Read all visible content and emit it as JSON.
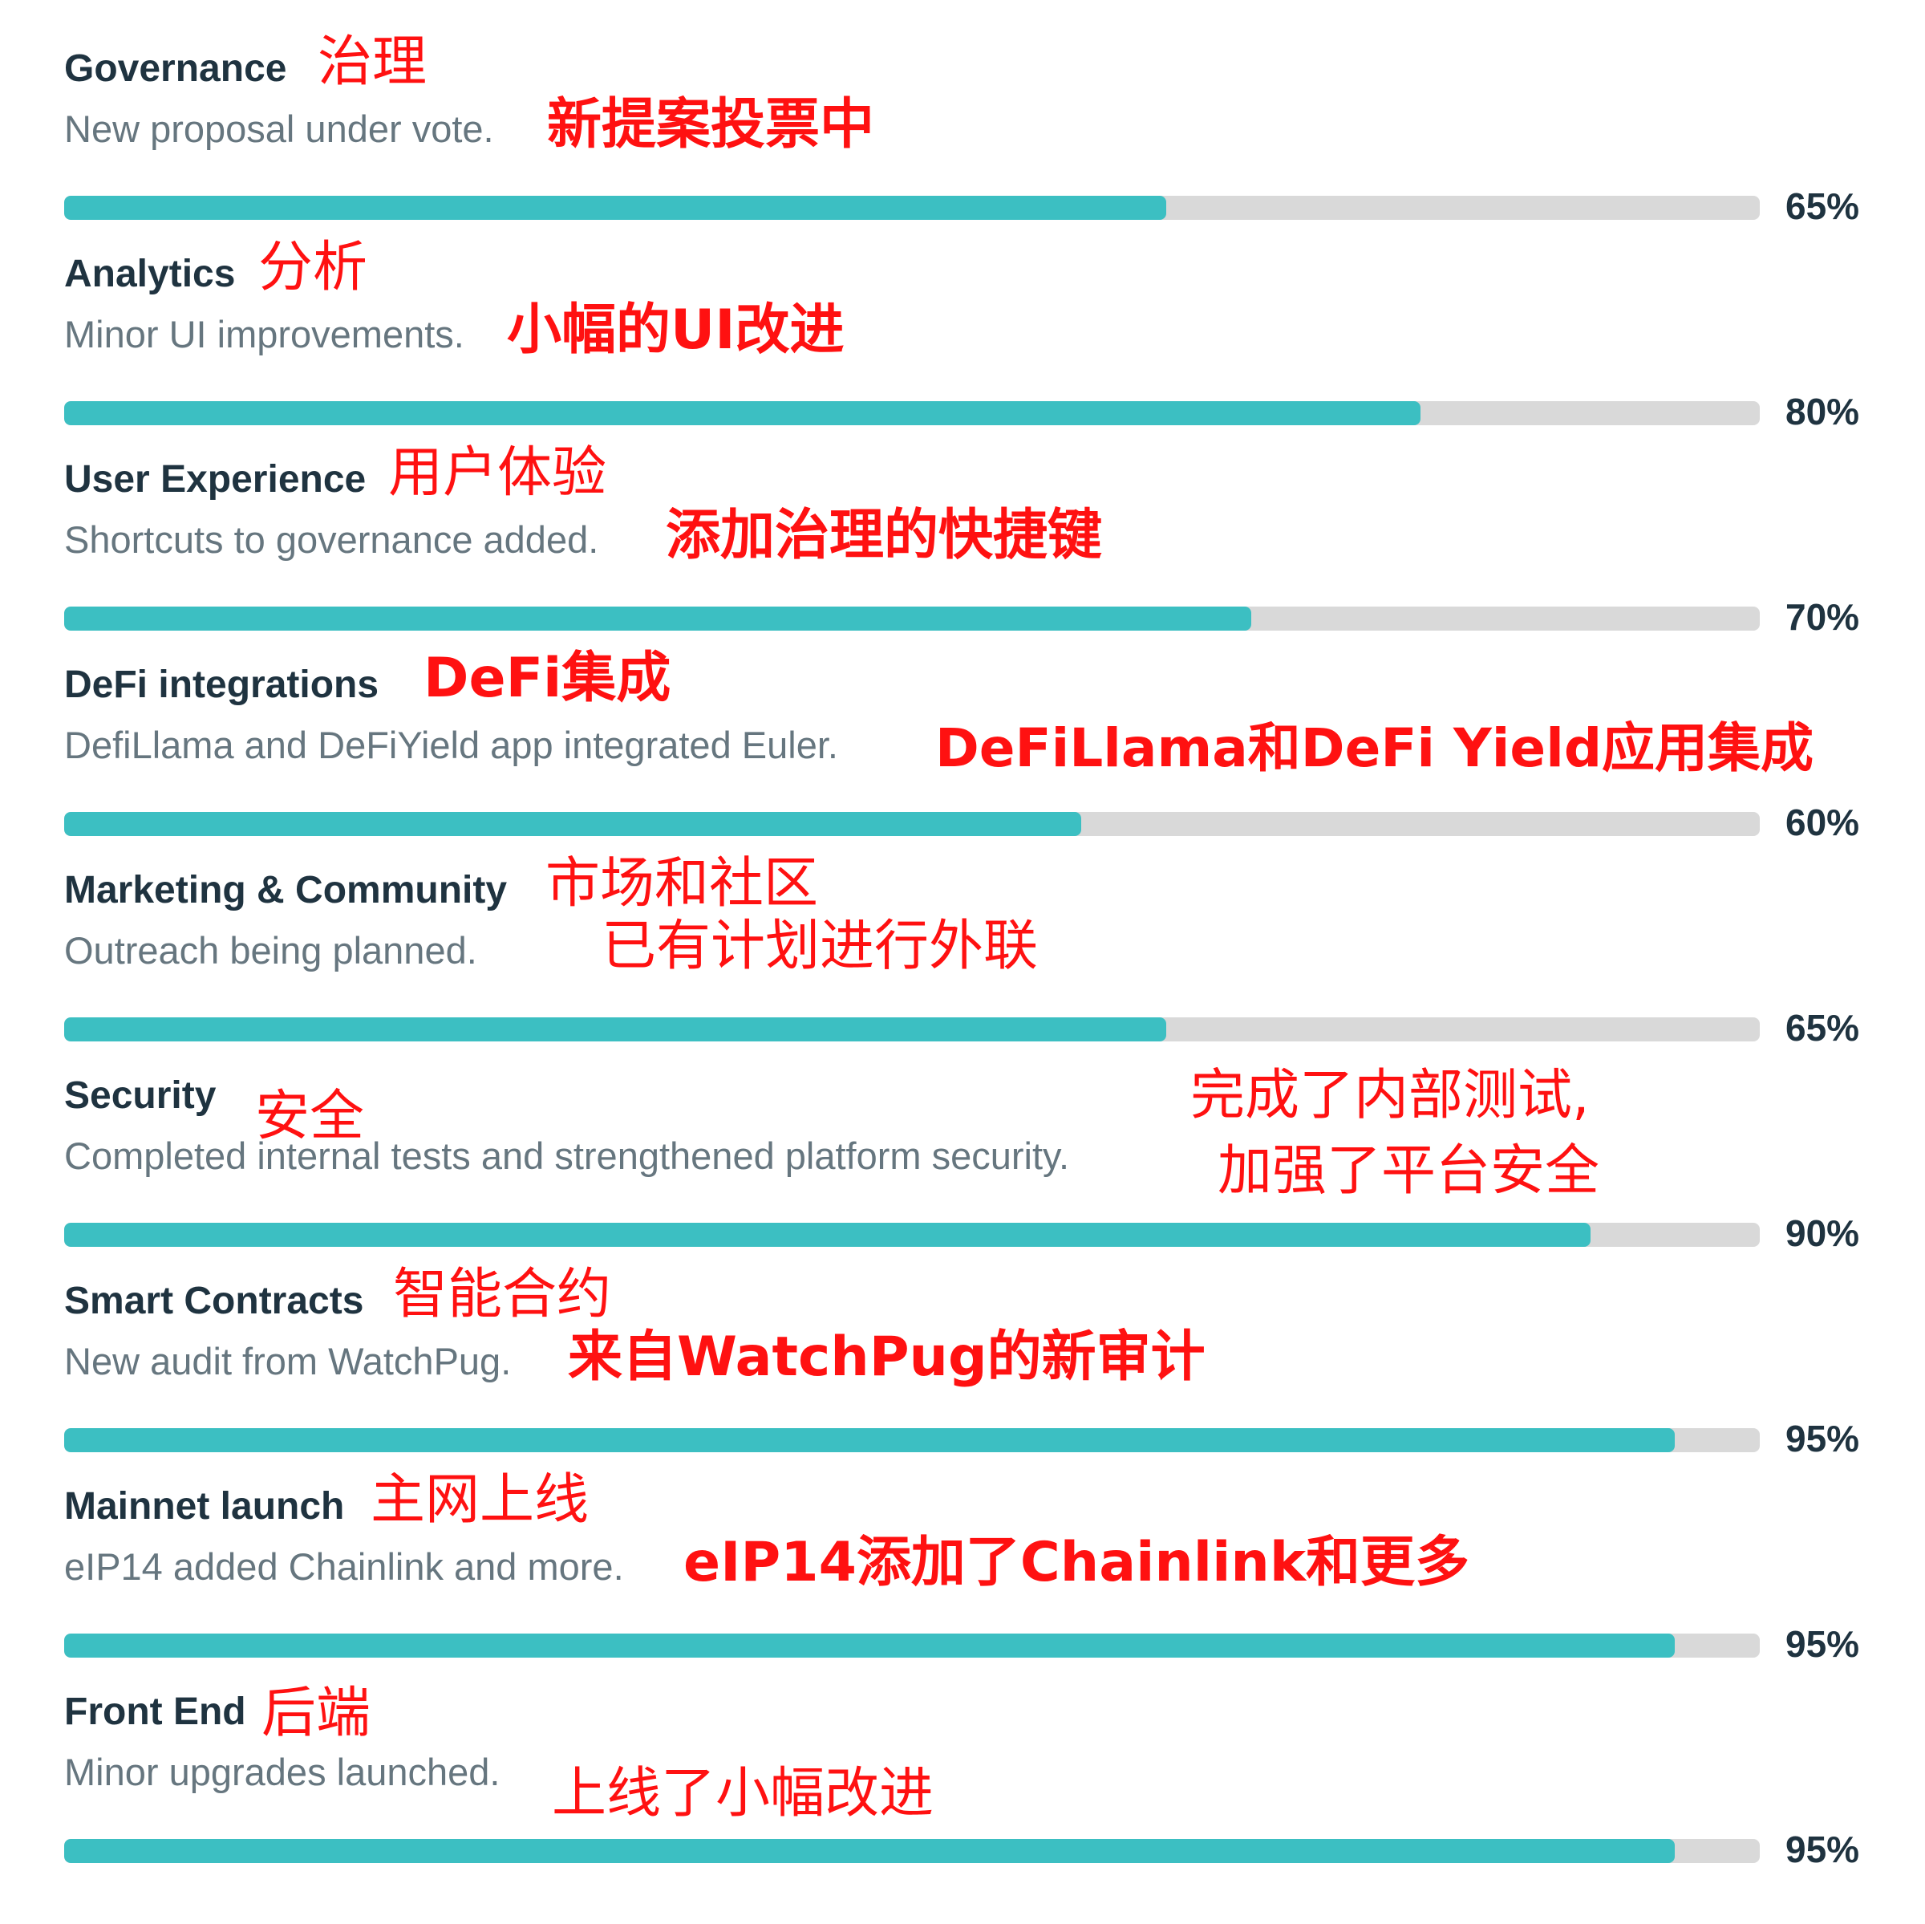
{
  "chart_data": {
    "type": "bar",
    "categories": [
      "Governance",
      "Analytics",
      "User Experience",
      "DeFi integrations",
      "Marketing & Community",
      "Security",
      "Smart Contracts",
      "Mainnet launch",
      "Front End"
    ],
    "values": [
      65,
      80,
      70,
      60,
      65,
      90,
      95,
      95,
      95
    ],
    "value_labels": [
      "65%",
      "80%",
      "70%",
      "60%",
      "65%",
      "90%",
      "95%",
      "95%",
      "95%"
    ],
    "xlim": [
      0,
      100
    ],
    "colors": {
      "fill": "#3cbfc2",
      "track": "#d9d9d9",
      "annotation": "#ff1111"
    }
  },
  "items": [
    {
      "title": "Governance",
      "title_zh": "治理",
      "desc": "New proposal under vote.",
      "desc_zh": "新提案投票中",
      "desc_zh2": "",
      "pct": "65%"
    },
    {
      "title": "Analytics",
      "title_zh": "分析",
      "desc": "Minor UI improvements.",
      "desc_zh": "小幅的UI改进",
      "desc_zh2": "",
      "pct": "80%"
    },
    {
      "title": "User Experience",
      "title_zh": "用户体验",
      "desc": "Shortcuts to governance added.",
      "desc_zh": "添加治理的快捷键",
      "desc_zh2": "",
      "pct": "70%"
    },
    {
      "title": "DeFi integrations",
      "title_zh": "DeFi集成",
      "desc": "DefiLlama and DeFiYield app integrated Euler.",
      "desc_zh": "DeFiLlama和DeFi Yield应用集成",
      "desc_zh2": "",
      "pct": "60%"
    },
    {
      "title": "Marketing & Community",
      "title_zh": "市场和社区",
      "desc": "Outreach being planned.",
      "desc_zh": "已有计划进行外联",
      "desc_zh2": "",
      "pct": "65%"
    },
    {
      "title": "Security",
      "title_zh": "安全",
      "desc": "Completed internal tests and strengthened platform security.",
      "desc_zh": "完成了内部测试,",
      "desc_zh2": "加强了平台安全",
      "pct": "90%"
    },
    {
      "title": "Smart Contracts",
      "title_zh": "智能合约",
      "desc": "New audit from WatchPug.",
      "desc_zh": "来自WatchPug的新审计",
      "desc_zh2": "",
      "pct": "95%"
    },
    {
      "title": "Mainnet launch",
      "title_zh": "主网上线",
      "desc": "eIP14 added Chainlink and more.",
      "desc_zh": "eIP14添加了Chainlink和更多",
      "desc_zh2": "",
      "pct": "95%"
    },
    {
      "title": "Front End",
      "title_zh": "后端",
      "desc": "Minor upgrades launched.",
      "desc_zh": "上线了小幅改进",
      "desc_zh2": "",
      "pct": "95%"
    }
  ]
}
